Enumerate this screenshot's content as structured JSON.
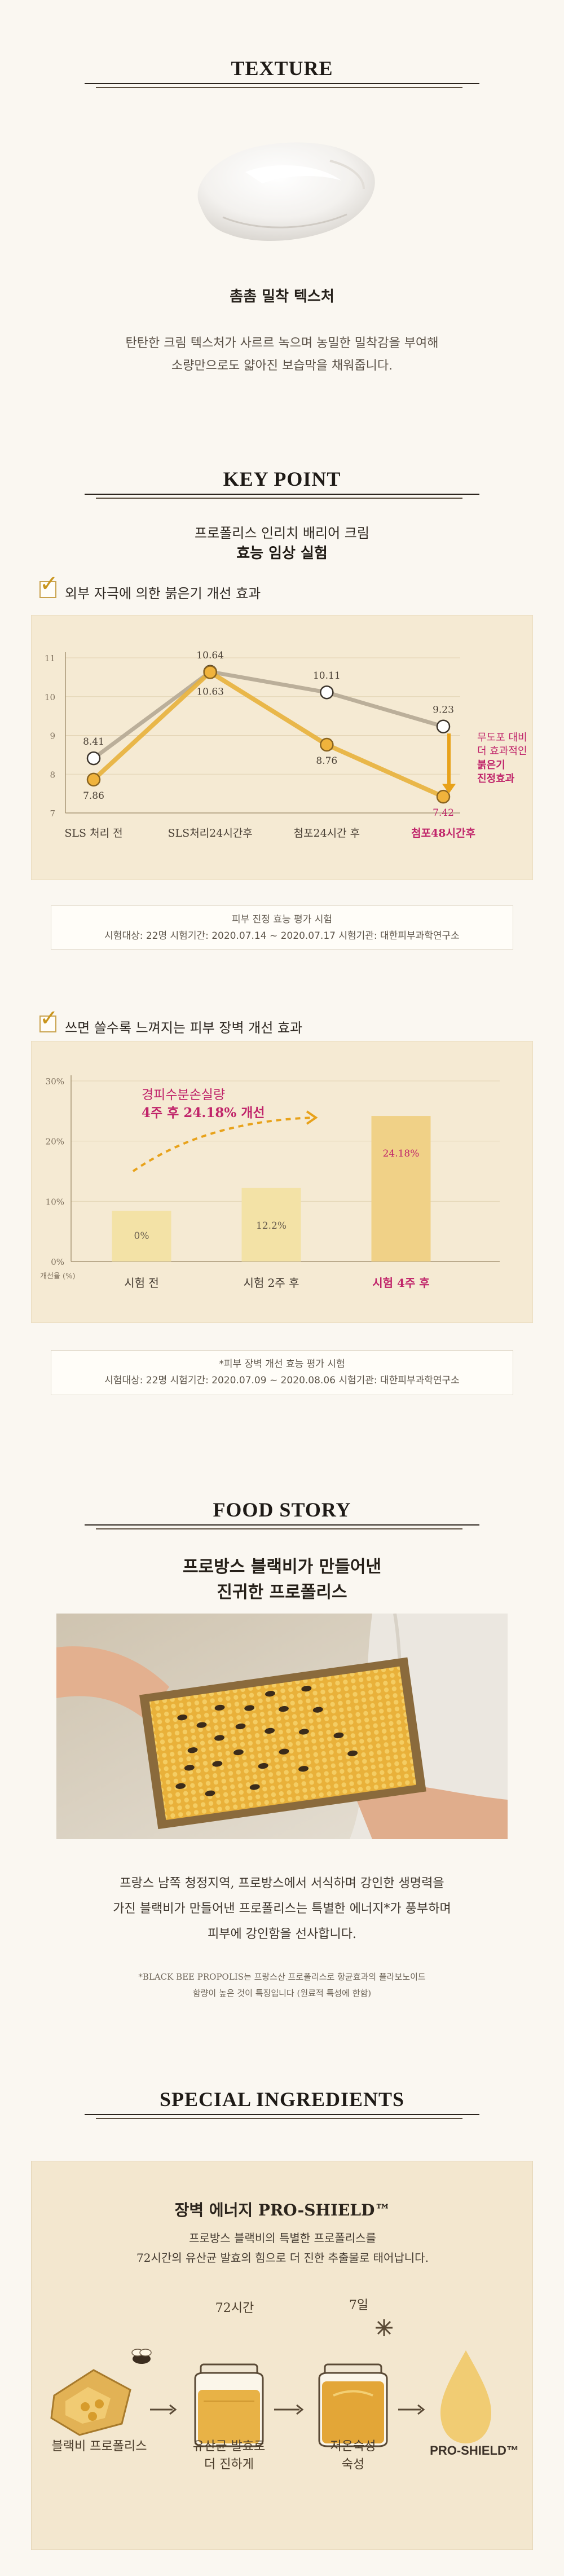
{
  "texture": {
    "heading": "TEXTURE",
    "subtitle": "촘촘 밀착 텍스처",
    "desc_line1": "탄탄한 크림 텍스처가 사르르 녹으며 농밀한 밀착감을 부여해",
    "desc_line2": "소량만으로도 얇아진 보습막을 채워줍니다."
  },
  "key_point": {
    "heading": "KEY POINT",
    "subtitle_line1": "프로폴리스 인리치 배리어 크림",
    "subtitle_line2": "효능 임상 실험"
  },
  "redness": {
    "label": "외부 자극에 의한 붉은기 개선 효과",
    "callout_line1": "무도포 대비",
    "callout_line2": "더 효과적인",
    "callout_line3": "붉은기",
    "callout_line4": "진정효과",
    "note_line1": "피부 진정 효능 평가 시험",
    "note_line2": "시험대상: 22명   시험기간: 2020.07.14 ~ 2020.07.17   시험기관: 대한피부과학연구소",
    "colors": {
      "untreated": "#b5a894",
      "treated": "#e8b13b",
      "highlight": "#c0246a"
    }
  },
  "chart_data": [
    {
      "type": "line",
      "categories": [
        "SLS 처리 전",
        "SLS처리24시간후",
        "첨포24시간 후",
        "첨포48시간후"
      ],
      "series": [
        {
          "values": [
            8.41,
            10.64,
            10.11,
            9.23
          ]
        },
        {
          "values": [
            7.86,
            10.63,
            8.76,
            7.42
          ]
        }
      ],
      "y_ticks": [
        "11",
        "10",
        "9",
        "8",
        "7"
      ],
      "ylim": [
        7,
        11
      ],
      "grid": true
    },
    {
      "type": "bar",
      "categories": [
        "시험 전",
        "시험 2주 후",
        "시험 4주 후"
      ],
      "values": [
        0,
        12.2,
        24.18
      ],
      "value_labels": [
        "0%",
        "12.2%",
        "24.18%"
      ],
      "y_ticks": [
        "30%",
        "20%",
        "10%",
        "0%"
      ],
      "ylabel": "개선율 (%)",
      "ylim": [
        0,
        30
      ],
      "grid": true
    }
  ],
  "hydration": {
    "label": "쓰면 쓸수록 느껴지는 피부 장벽 개선 효과",
    "callout_line1": "경피수분손실량",
    "callout_line2": "4주 후 24.18% 개선",
    "note_line1": "*피부 장벽 개선 효능 평가 시험",
    "note_line2": "시험대상: 22명   시험기간: 2020.07.09 ~ 2020.08.06   시험기관: 대한피부과학연구소",
    "colors": {
      "bar": "#f3e2a6",
      "bar_strong": "#f0d187",
      "highlight": "#c0246a"
    }
  },
  "food_story": {
    "heading": "FOOD STORY",
    "title_line1": "프로방스 블랙비가 만들어낸",
    "title_line2": "진귀한 프로폴리스",
    "body_line1": "프랑스 남쪽 청정지역, 프로방스에서 서식하며 강인한 생명력을",
    "body_line2": "가진  블랙비가 만들어낸 프로폴리스는 특별한 에너지*가 풍부하며",
    "body_line3": "피부에 강인함을 선사합니다.",
    "footnote_line1": "*BLACK BEE PROPOLIS는 프랑스산 프로폴리스로 항균효과의 플라보노이드",
    "footnote_line2": "함량이 높은 것이 특징입니다 (원료적 특성에 한함)"
  },
  "special": {
    "heading": "SPECIAL INGREDIENTS",
    "title": "장벽 에너지 PRO-SHIELD™",
    "desc_line1": "프로방스 블랙비의 특별한 프로폴리스를",
    "desc_line2": "72시간의 유산균 발효의 힘으로 더 진한 추출물로 태어납니다.",
    "step1_label": "블랙비 프로폴리스",
    "step2_top": "72시간",
    "step2_label_line1": "유산균 발효로",
    "step2_label_line2": "더 진하게",
    "step3_top": "7일",
    "step3_label_line1": "저온숙성",
    "step3_label_line2": "숙성",
    "result_label": "PRO-SHIELD™"
  }
}
